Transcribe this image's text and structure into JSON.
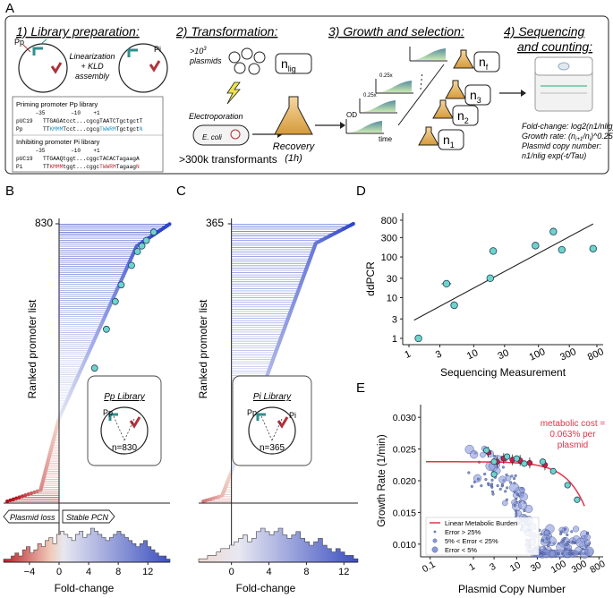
{
  "panel_letters": {
    "a": "A",
    "b": "B",
    "c": "C",
    "d": "D",
    "e": "E"
  },
  "panel_a": {
    "step1": "1) Library preparation:",
    "step2": "2) Transformation:",
    "step3": "3) Growth and selection:",
    "step4a": "4) Sequencing",
    "step4b": "and counting:",
    "pp": "Pp",
    "pi": "Pi",
    "linearization": "Linearization",
    "kld": "+ KLD",
    "assembly": "assembly",
    "plasmids_top": ">10",
    "plasmids_exp": "3",
    "plasmids_word": "plasmids",
    "n_lig": "n",
    "n_lig_sub": "lig",
    "electroporation": "Electroporation",
    "ecoli": "E. coli",
    "transformants": ">300k transformants",
    "recovery": "Recovery",
    "recovery_time": "(1h)",
    "od": "OD",
    "time": "time",
    "tick": "0.25x",
    "n_f": "n",
    "n_f_sub": "f",
    "n3": "n",
    "n3_sub": "3",
    "n2": "n",
    "n2_sub": "2",
    "n1": "n",
    "n1_sub": "1",
    "formula1": "Fold-change: log2(n1/nlig)",
    "formula2a": "Growth rate: (n",
    "formula2b": "i+1",
    "formula2c": "/n",
    "formula2d": "i",
    "formula2e": ")^0.25",
    "formula3": "Plasmid copy number:",
    "formula4": "n1/nlig exp(-t/Tau)",
    "priming_title": "Priming promoter Pp library",
    "priming_hdr": "      –35        –10    +1",
    "priming_l1_name": "pUC19",
    "priming_l1_seq": "TTGAGAtcct...cgcgTAATCTgctgctT",
    "priming_l2_name": "Pp",
    "priming_l2_seq_a": "TT",
    "priming_l2_seq_b": "KMMM",
    "priming_l2_seq_c": "Tcct...cgcg",
    "priming_l2_seq_d": "TWWRM",
    "priming_l2_seq_e": "Tgctgct",
    "priming_l2_seq_f": "N",
    "inhibit_title": "Inhibiting promoter Pi library",
    "inhibit_hdr": "      –35        –10    +1",
    "inhibit_l1_name": "pUC19",
    "inhibit_l1_seq": "TTGAAQtggt...cggcTACACTagaagA",
    "inhibit_l2_name": "Pi",
    "inhibit_l2_seq_a": "TT",
    "inhibit_l2_seq_b": "KMMM",
    "inhibit_l2_seq_c": "tggt...cggc",
    "inhibit_l2_seq_d": "TWWRM",
    "inhibit_l2_seq_e": "Tagaag",
    "inhibit_l2_seq_f": "N"
  },
  "panel_b": {
    "count_label": "830",
    "ylabel": "Ranked promoter list",
    "xlabel": "Fold-change",
    "ticks": [
      "−4",
      "0",
      "4",
      "8",
      "12"
    ],
    "tick_values": [
      -4,
      0,
      4,
      8,
      12
    ],
    "xlim": [
      -7.5,
      15
    ],
    "plasmid_loss": "Plasmid loss",
    "stable_pcn": "Stable PCN",
    "library": "Pp Library",
    "pp": "Pp",
    "pi": "Pi",
    "n_label": "n=830",
    "n": 830
  },
  "panel_c": {
    "count_label": "365",
    "ylabel": "Ranked promoter list",
    "xlabel": "Fold-change",
    "ticks": [
      "0",
      "4",
      "8",
      "12"
    ],
    "tick_values": [
      0,
      4,
      8,
      12
    ],
    "xlim": [
      -3.5,
      13.5
    ],
    "library": "Pi Library",
    "pp": "Pp",
    "pi": "Pi",
    "n_label": "n=365",
    "n": 365
  },
  "chart_data": [
    {
      "type": "scatter",
      "panel": "D",
      "title": "",
      "xlabel": "Sequencing Measurement",
      "ylabel": "ddPCR",
      "xscale": "log",
      "yscale": "log",
      "xlim": [
        0.8,
        1000
      ],
      "ylim": [
        0.7,
        1200
      ],
      "x_ticks": [
        "1",
        "3",
        "10",
        "30",
        "100",
        "300",
        "800"
      ],
      "x_tick_values": [
        1,
        3,
        10,
        30,
        100,
        300,
        800
      ],
      "y_ticks": [
        "1",
        "3",
        "10",
        "30",
        "100",
        "300",
        "800"
      ],
      "y_tick_values": [
        1,
        3,
        10,
        30,
        100,
        300,
        800
      ],
      "points": [
        {
          "x": 1.4,
          "y": 1.0
        },
        {
          "x": 3.8,
          "y": 22
        },
        {
          "x": 5.0,
          "y": 6.5
        },
        {
          "x": 18,
          "y": 30
        },
        {
          "x": 20,
          "y": 140
        },
        {
          "x": 90,
          "y": 190
        },
        {
          "x": 170,
          "y": 420
        },
        {
          "x": 230,
          "y": 150
        },
        {
          "x": 700,
          "y": 160
        }
      ],
      "fit": [
        {
          "x": 1.2,
          "y": 2.8
        },
        {
          "x": 700,
          "y": 650
        }
      ]
    },
    {
      "type": "scatter",
      "panel": "E",
      "xlabel": "Plasmid Copy Number",
      "ylabel": "Growth Rate (1/min)",
      "xscale": "log",
      "xlim": [
        0.06,
        1000
      ],
      "ylim": [
        0.008,
        0.032
      ],
      "x_ticks": [
        "0.1",
        "1",
        "3",
        "10",
        "30",
        "100",
        "300",
        "800"
      ],
      "x_tick_values": [
        0.1,
        1,
        3,
        10,
        30,
        100,
        300,
        800
      ],
      "y_ticks": [
        "0.010",
        "0.015",
        "0.020",
        "0.025",
        "0.030"
      ],
      "y_tick_values": [
        0.01,
        0.015,
        0.02,
        0.025,
        0.03
      ],
      "annotation": "metabolic cost =",
      "annotation2": "0.063% per",
      "annotation3": "plasmid",
      "legend": [
        "Linear Metabolic Burden",
        "Error > 25%",
        "5% < Error < 25%",
        "Error < 5%"
      ],
      "model": {
        "mu0": 0.023,
        "cost_per_plasmid": 0.00063
      },
      "highlight_points": [
        {
          "x": 2,
          "y": 0.0248
        },
        {
          "x": 3,
          "y": 0.023
        },
        {
          "x": 6,
          "y": 0.0238
        },
        {
          "x": 10,
          "y": 0.0235
        },
        {
          "x": 15,
          "y": 0.0227
        },
        {
          "x": 40,
          "y": 0.023
        },
        {
          "x": 70,
          "y": 0.0215
        },
        {
          "x": 150,
          "y": 0.0193
        },
        {
          "x": 250,
          "y": 0.017
        },
        {
          "x": 3,
          "y": 0.021
        }
      ],
      "red_points": [
        {
          "x": 2.2,
          "y": 0.0245
        },
        {
          "x": 3.5,
          "y": 0.023
        },
        {
          "x": 5,
          "y": 0.0235
        },
        {
          "x": 8,
          "y": 0.0233
        },
        {
          "x": 12,
          "y": 0.0232
        },
        {
          "x": 20,
          "y": 0.0228
        },
        {
          "x": 45,
          "y": 0.0225
        }
      ]
    }
  ]
}
